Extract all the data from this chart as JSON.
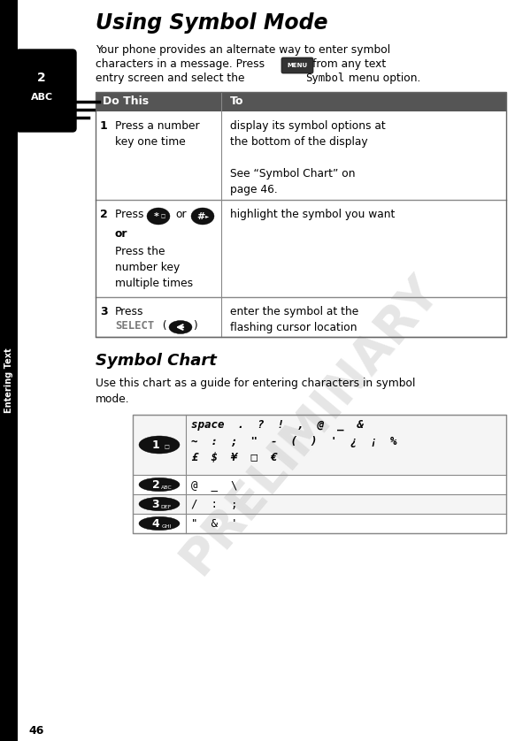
{
  "title": "Using Symbol Mode",
  "page_number": "46",
  "section_label": "Entering Text",
  "bg_color": "#ffffff",
  "sidebar_color": "#000000",
  "table_header_bg": "#555555",
  "table_col1_header": "Do This",
  "table_col2_header": "To",
  "symbol_chart_title": "Symbol Chart",
  "symbol_chart_intro": "Use this chart as a guide for entering characters in symbol\nmode.",
  "preliminary_color": "#c8c8c8",
  "table_line_color": "#888888",
  "select_color": "#7a7a7a",
  "row1_col2": "display its symbol options at\nthe bottom of the display\n\nSee “Symbol Chart” on\npage 46.",
  "row2_col2": "highlight the symbol you want",
  "row3_col2": "enter the symbol at the\nflashing cursor location",
  "sym_row1": "space  .  ?  !  ,  @  _  &\n~  :  ;  \"  -  (  )  '  ¿  ¡  %\n£  $  ¥  □  €",
  "sym_row2": "@  _  \\",
  "sym_row3": "/  :  ;",
  "sym_row4": "\"  &  '"
}
